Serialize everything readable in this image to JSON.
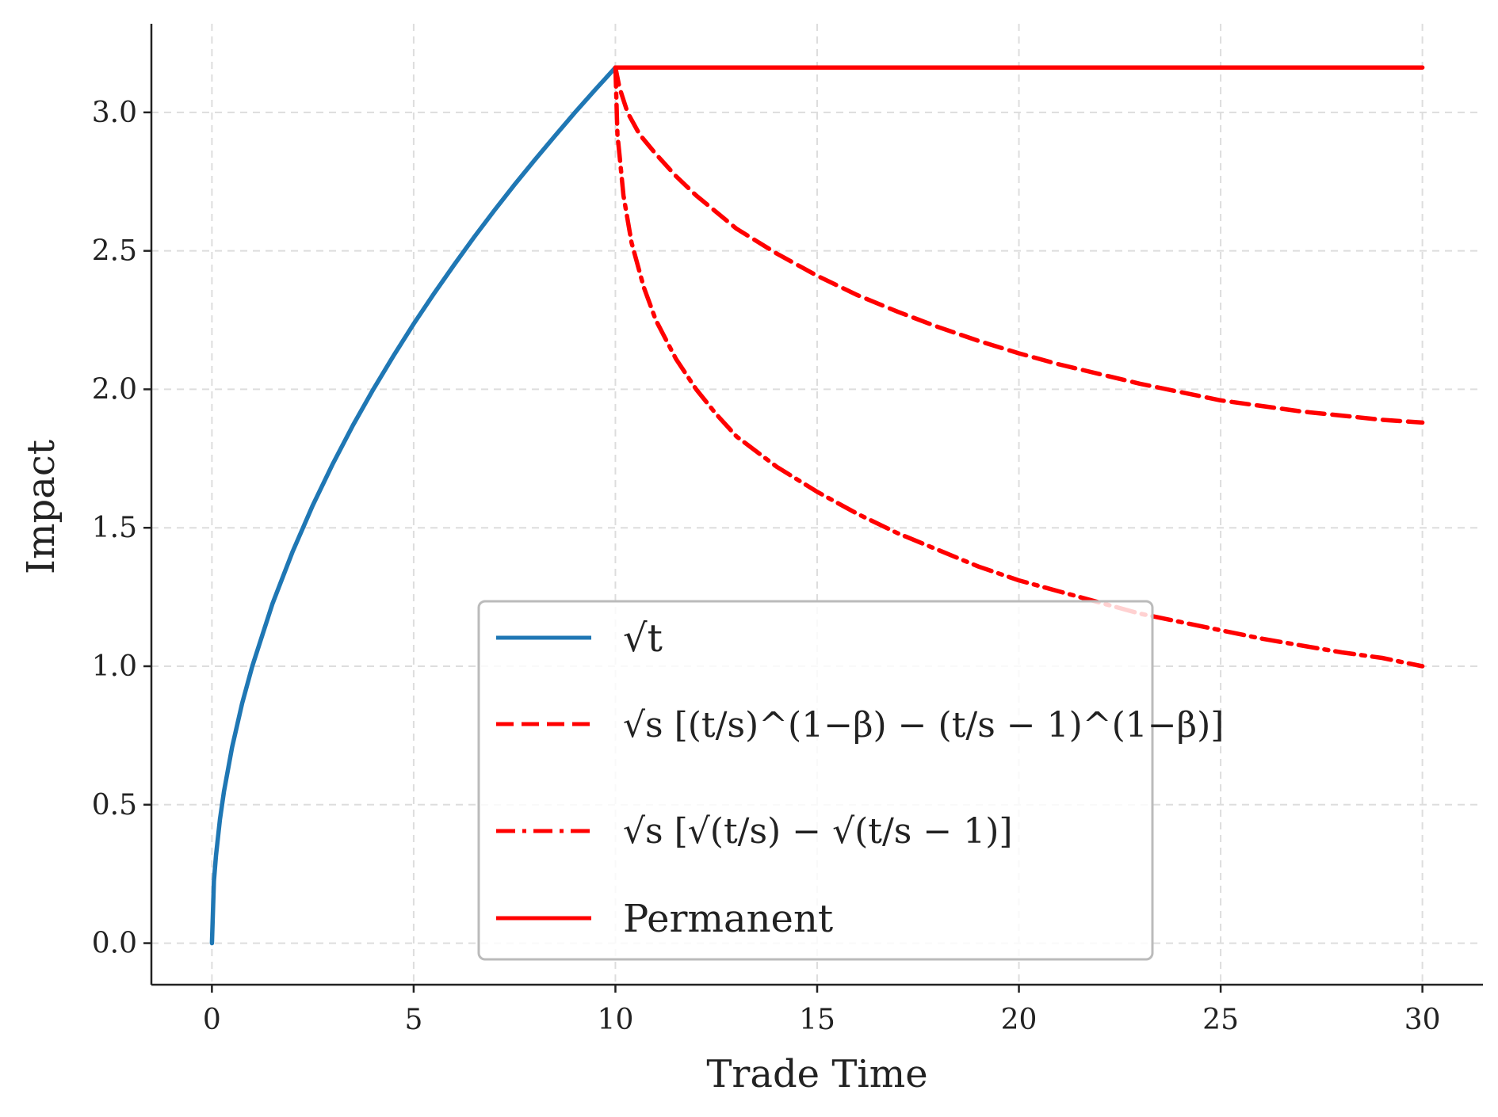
{
  "chart_data": {
    "type": "line",
    "title": "",
    "xlabel": "Trade Time",
    "ylabel": "Impact",
    "xlim": [
      -1.5,
      31.5
    ],
    "ylim": [
      -0.15,
      3.32
    ],
    "xticks": [
      0,
      5,
      10,
      15,
      20,
      25,
      30
    ],
    "yticks": [
      0.0,
      0.5,
      1.0,
      1.5,
      2.0,
      2.5,
      3.0
    ],
    "xtick_labels": [
      "0",
      "5",
      "10",
      "15",
      "20",
      "25",
      "30"
    ],
    "ytick_labels": [
      "0.0",
      "0.5",
      "1.0",
      "1.5",
      "2.0",
      "2.5",
      "3.0"
    ],
    "grid": true,
    "legend_position": "bottom-center",
    "series": [
      {
        "name": "√t",
        "color": "#1f77b4",
        "style": "solid",
        "x": [
          0,
          0.05,
          0.1,
          0.2,
          0.3,
          0.5,
          0.75,
          1,
          1.5,
          2,
          2.5,
          3,
          3.5,
          4,
          4.5,
          5,
          5.5,
          6,
          6.5,
          7,
          7.5,
          8,
          8.5,
          9,
          9.5,
          10
        ],
        "y": [
          0,
          0.224,
          0.316,
          0.447,
          0.548,
          0.707,
          0.866,
          1.0,
          1.225,
          1.414,
          1.581,
          1.732,
          1.871,
          2.0,
          2.121,
          2.236,
          2.345,
          2.449,
          2.55,
          2.646,
          2.739,
          2.828,
          2.915,
          3.0,
          3.082,
          3.162
        ]
      },
      {
        "name": "√s [(t/s)^(1−β) − (t/s − 1)^(1−β)]",
        "color": "#ff0000",
        "style": "dashed",
        "x": [
          10,
          10.1,
          10.3,
          10.6,
          11,
          11.5,
          12,
          13,
          14,
          15,
          16,
          17,
          18,
          19,
          20,
          21,
          22,
          23,
          24,
          25,
          26,
          27,
          28,
          29,
          30
        ],
        "y": [
          3.162,
          3.09,
          3.0,
          2.92,
          2.85,
          2.77,
          2.7,
          2.58,
          2.49,
          2.41,
          2.34,
          2.28,
          2.225,
          2.175,
          2.13,
          2.09,
          2.055,
          2.02,
          1.99,
          1.96,
          1.94,
          1.92,
          1.905,
          1.89,
          1.88
        ]
      },
      {
        "name": "√s [√(t/s) − √(t/s − 1)]",
        "color": "#ff0000",
        "style": "dashdot",
        "x": [
          10,
          10.05,
          10.1,
          10.2,
          10.4,
          10.7,
          11,
          11.5,
          12,
          12.5,
          13,
          14,
          15,
          16,
          17,
          18,
          19,
          20,
          21,
          22,
          23,
          24,
          25,
          26,
          27,
          28,
          29,
          30
        ],
        "y": [
          3.162,
          2.92,
          2.85,
          2.7,
          2.53,
          2.37,
          2.25,
          2.11,
          2.0,
          1.91,
          1.83,
          1.72,
          1.63,
          1.55,
          1.48,
          1.42,
          1.36,
          1.31,
          1.27,
          1.23,
          1.19,
          1.16,
          1.13,
          1.1,
          1.075,
          1.05,
          1.03,
          1.0
        ]
      },
      {
        "name": "Permanent",
        "color": "#ff0000",
        "style": "solid",
        "x": [
          10,
          30
        ],
        "y": [
          3.162,
          3.162
        ]
      }
    ]
  }
}
